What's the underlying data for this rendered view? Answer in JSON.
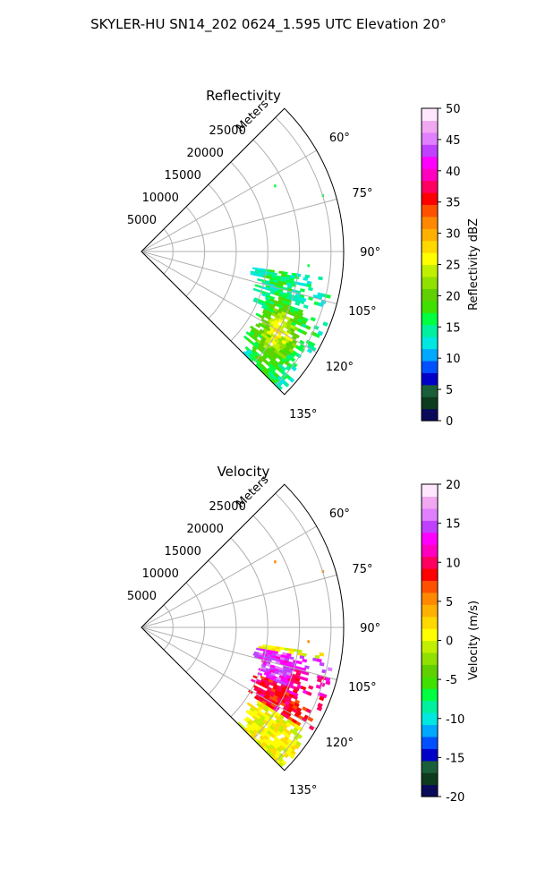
{
  "figure": {
    "title": "SKYLER-HU  SN14_202  0624_1.595 UTC Elevation 20°"
  },
  "chart_data": [
    {
      "type": "heatmap",
      "title": "Reflectivity",
      "projection": "polar sector",
      "radial_axis": {
        "label": "Meters",
        "range": [
          0,
          32000
        ],
        "grid_values": [
          5000,
          10000,
          15000,
          20000,
          25000,
          30000
        ],
        "tick_labels": [
          "5000",
          "10000",
          "15000",
          "20000",
          "25000"
        ]
      },
      "angular_axis": {
        "range_deg": [
          45,
          135
        ],
        "grid_values_deg": [
          45,
          60,
          75,
          90,
          105,
          120,
          135
        ],
        "tick_labels": [
          "60°",
          "75°",
          "90°",
          "105°",
          "120°",
          "135°"
        ]
      },
      "grid": true,
      "colorbar": {
        "label": "Reflectivity dBZ",
        "range": [
          0,
          50
        ],
        "tick_values": [
          0,
          5,
          10,
          15,
          20,
          25,
          30,
          35,
          40,
          45,
          50
        ],
        "colors": [
          "#0a0a5a",
          "#0d3b1e",
          "#1a5e3a",
          "#0000c8",
          "#0050ff",
          "#00a8ff",
          "#00e8e0",
          "#00f0a0",
          "#00ff40",
          "#40e000",
          "#60d000",
          "#90e000",
          "#c0f000",
          "#ffff00",
          "#ffd800",
          "#ffb000",
          "#ff8800",
          "#ff5000",
          "#ff0000",
          "#ff0060",
          "#ff00c0",
          "#ff00ff",
          "#c040ff",
          "#e080ff",
          "#f0a8f0",
          "#ffe8ff"
        ]
      },
      "echo_region": {
        "azimuth_deg": [
          98,
          134
        ],
        "range_m": [
          16000,
          31000
        ],
        "dominant_values": [
          15,
          28
        ],
        "core_value": 27
      }
    },
    {
      "type": "heatmap",
      "title": "Velocity",
      "projection": "polar sector",
      "radial_axis": {
        "label": "Meters",
        "range": [
          0,
          32000
        ],
        "grid_values": [
          5000,
          10000,
          15000,
          20000,
          25000,
          30000
        ],
        "tick_labels": [
          "5000",
          "10000",
          "15000",
          "20000",
          "25000"
        ]
      },
      "angular_axis": {
        "range_deg": [
          45,
          135
        ],
        "grid_values_deg": [
          45,
          60,
          75,
          90,
          105,
          120,
          135
        ],
        "tick_labels": [
          "60°",
          "75°",
          "90°",
          "105°",
          "120°",
          "135°"
        ]
      },
      "grid": true,
      "colorbar": {
        "label": "Velocity (m/s)",
        "range": [
          -20,
          20
        ],
        "tick_values": [
          -20,
          -15,
          -10,
          -5,
          0,
          5,
          10,
          15,
          20
        ],
        "colors": [
          "#0a0a5a",
          "#0d3b1e",
          "#1a5e3a",
          "#0000c8",
          "#0050ff",
          "#00a8ff",
          "#00e8e0",
          "#00f0a0",
          "#00ff40",
          "#40e000",
          "#60d000",
          "#90e000",
          "#c0f000",
          "#ffff00",
          "#ffd800",
          "#ffb000",
          "#ff8800",
          "#ff5000",
          "#ff0000",
          "#ff0060",
          "#ff00c0",
          "#ff00ff",
          "#c040ff",
          "#e080ff",
          "#f0a8f0",
          "#ffe8ff"
        ]
      },
      "echo_region": {
        "azimuth_deg": [
          98,
          134
        ],
        "range_m": [
          16000,
          31000
        ],
        "dominant_values": [
          -2,
          16
        ],
        "outbound_bands": [
          {
            "azimuth_deg": [
              100,
              112
            ],
            "value": 14
          },
          {
            "azimuth_deg": [
              112,
              122
            ],
            "value": 9
          },
          {
            "azimuth_deg": [
              122,
              134
            ],
            "value": 1
          }
        ]
      }
    }
  ]
}
